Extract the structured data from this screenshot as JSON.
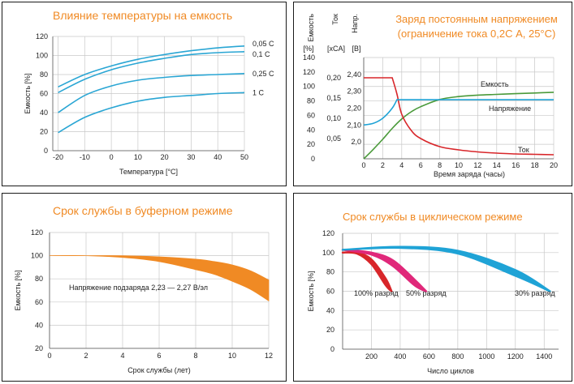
{
  "charts": {
    "temp": {
      "title": "Влияние температуры на емкость",
      "ylabel": "Емкость [%]",
      "xlabel": "Температура [°C]",
      "xticks": [
        "-20",
        "-10",
        "0",
        "10",
        "20",
        "30",
        "40",
        "50"
      ],
      "yticks": [
        "0",
        "20",
        "40",
        "60",
        "80",
        "100",
        "120"
      ]
    },
    "charge": {
      "title_line1": "Заряд постоянным напряжением",
      "title_line2": "(ограничение тока 0,2C А, 25°C)",
      "col1_label": "Емкость",
      "col1_unit": "[%]",
      "col2_label": "Ток",
      "col2_unit": "[хCA]",
      "col3_label": "Напр.",
      "col3_unit": "[В]",
      "xlabel": "Время заряда (часы)",
      "xticks": [
        "0",
        "2",
        "4",
        "6",
        "8",
        "10",
        "12",
        "14",
        "16",
        "18",
        "20"
      ],
      "cap_ticks": [
        "0",
        "20",
        "40",
        "60",
        "80",
        "100",
        "120",
        "140"
      ],
      "cur_ticks": [
        "0,05",
        "0,10",
        "0,15",
        "0,20"
      ],
      "volt_ticks": [
        "2,0",
        "2,10",
        "2,20",
        "2,30",
        "2,40"
      ]
    },
    "float": {
      "title": "Срок службы в буферном режиме",
      "ylabel": "Емкость [%]",
      "xlabel": "Срок службы (лет)",
      "annotation": "Напряжение подзаряда 2,23 — 2,27 В/эл",
      "xticks": [
        "0",
        "2",
        "4",
        "6",
        "8",
        "10",
        "12"
      ],
      "yticks": [
        "20",
        "40",
        "60",
        "80",
        "100",
        "120"
      ]
    },
    "cyclic": {
      "title": "Срок службы в циклическом режиме",
      "ylabel": "Емкость [%]",
      "xlabel": "Число циклов",
      "xticks": [
        "200",
        "400",
        "600",
        "800",
        "1000",
        "1200",
        "1400"
      ],
      "yticks": [
        "0",
        "20",
        "40",
        "60",
        "80",
        "100",
        "120"
      ]
    }
  },
  "colors": {
    "title": "#f08a24",
    "blue": "#2aa6d4",
    "green": "#4a9a3a",
    "red": "#d8262a",
    "orange": "#f08a24",
    "magenta": "#e0287a",
    "cyan": "#1fa3d6"
  },
  "chart_data": [
    {
      "type": "line",
      "title": "Влияние температуры на емкость",
      "xlabel": "Температура [°C]",
      "ylabel": "Емкость [%]",
      "xlim": [
        -22,
        50
      ],
      "ylim": [
        0,
        120
      ],
      "x": [
        -20,
        -10,
        0,
        10,
        20,
        30,
        40,
        50
      ],
      "series": [
        {
          "name": "0,05 C",
          "values": [
            67,
            80,
            89,
            96,
            101,
            105,
            108,
            110
          ]
        },
        {
          "name": "0,1 C",
          "values": [
            61,
            75,
            85,
            92,
            97,
            101,
            103,
            104
          ]
        },
        {
          "name": "0,25 C",
          "values": [
            40,
            58,
            68,
            74,
            77,
            79,
            80,
            81
          ]
        },
        {
          "name": "1 C",
          "values": [
            19,
            35,
            45,
            52,
            56,
            58,
            60,
            61
          ]
        }
      ]
    },
    {
      "type": "line",
      "title": "Заряд постоянным напряжением (ограничение тока 0,2C А, 25°C)",
      "xlabel": "Время заряда (часы)",
      "xlim": [
        0,
        20
      ],
      "series": [
        {
          "name": "Емкость",
          "axis": "capacity",
          "x": [
            0,
            1,
            2,
            3,
            4,
            5,
            6,
            8,
            10,
            12,
            14,
            16,
            18,
            20
          ],
          "values": [
            0,
            13,
            27,
            42,
            55,
            65,
            72,
            82,
            86,
            88,
            89,
            90,
            91,
            92
          ]
        },
        {
          "name": "Ток",
          "axis": "current",
          "x": [
            0,
            1,
            2,
            3,
            3.5,
            4,
            5,
            6,
            8,
            10,
            12,
            14,
            16,
            18,
            20
          ],
          "values": [
            0.2,
            0.2,
            0.2,
            0.2,
            0.16,
            0.11,
            0.07,
            0.05,
            0.03,
            0.022,
            0.017,
            0.014,
            0.012,
            0.011,
            0.01
          ]
        },
        {
          "name": "Напряжение",
          "axis": "voltage",
          "x": [
            0,
            1,
            2,
            3,
            3.5,
            4,
            6,
            10,
            20
          ],
          "values": [
            2.1,
            2.11,
            2.14,
            2.2,
            2.25,
            2.25,
            2.25,
            2.25,
            2.25
          ]
        }
      ]
    },
    {
      "type": "area",
      "title": "Срок службы в буферном режиме",
      "xlabel": "Срок службы (лет)",
      "ylabel": "Емкость [%]",
      "xlim": [
        0,
        12
      ],
      "ylim": [
        20,
        120
      ],
      "x": [
        0,
        2,
        4,
        6,
        8,
        9,
        10,
        11,
        12
      ],
      "series": [
        {
          "name": "upper",
          "values": [
            100,
            100,
            100,
            99,
            97,
            95,
            92,
            87,
            79
          ]
        },
        {
          "name": "lower",
          "values": [
            100,
            100,
            98.5,
            95,
            88,
            84,
            78,
            71,
            61
          ]
        }
      ]
    },
    {
      "type": "line",
      "title": "Срок службы в циклическом режиме",
      "xlabel": "Число циклов",
      "ylabel": "Емкость [%]",
      "xlim": [
        0,
        1500
      ],
      "ylim": [
        0,
        120
      ],
      "series": [
        {
          "name": "100% разряд",
          "band": [
            [
              0,
              100,
              100
            ],
            [
              100,
              100,
              99
            ],
            [
              200,
              93,
              88
            ],
            [
              300,
              73,
              66
            ],
            [
              340,
              60,
              60
            ]
          ]
        },
        {
          "name": "50% разряд",
          "band": [
            [
              0,
              103,
              103
            ],
            [
              200,
              100,
              98
            ],
            [
              350,
              92,
              86
            ],
            [
              500,
              72,
              66
            ],
            [
              580,
              60,
              60
            ]
          ]
        },
        {
          "name": "30% разряд",
          "band": [
            [
              0,
              103,
              103
            ],
            [
              400,
              106,
              105
            ],
            [
              800,
              102,
              99
            ],
            [
              1200,
              82,
              76
            ],
            [
              1440,
              60,
              60
            ]
          ]
        }
      ]
    }
  ]
}
